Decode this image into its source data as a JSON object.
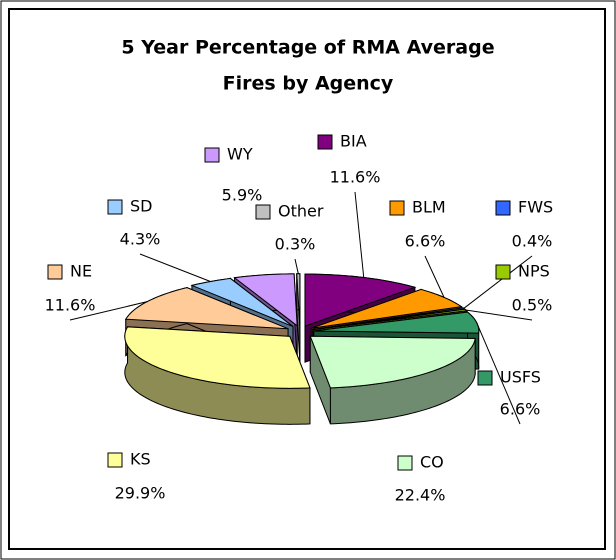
{
  "chart_data": {
    "type": "pie3d",
    "title": [
      "5 Year Percentage of RMA Average",
      "Fires by Agency"
    ],
    "categories": [
      "BIA",
      "BLM",
      "FWS",
      "NPS",
      "USFS",
      "CO",
      "KS",
      "NE",
      "SD",
      "WY",
      "Other"
    ],
    "values": [
      11.6,
      6.6,
      0.4,
      0.5,
      6.6,
      22.4,
      29.9,
      11.6,
      4.3,
      5.9,
      0.3
    ],
    "value_labels": [
      "11.6%",
      "6.6%",
      "0.4%",
      "0.5%",
      "6.6%",
      "22.4%",
      "29.9%",
      "11.6%",
      "4.3%",
      "5.9%",
      "0.3%"
    ],
    "colors": [
      "#800080",
      "#ff9900",
      "#3366ff",
      "#99cc00",
      "#339966",
      "#ccffcc",
      "#ffff99",
      "#ffcc99",
      "#99ccff",
      "#cc99ff",
      "#c0c0c0"
    ]
  }
}
